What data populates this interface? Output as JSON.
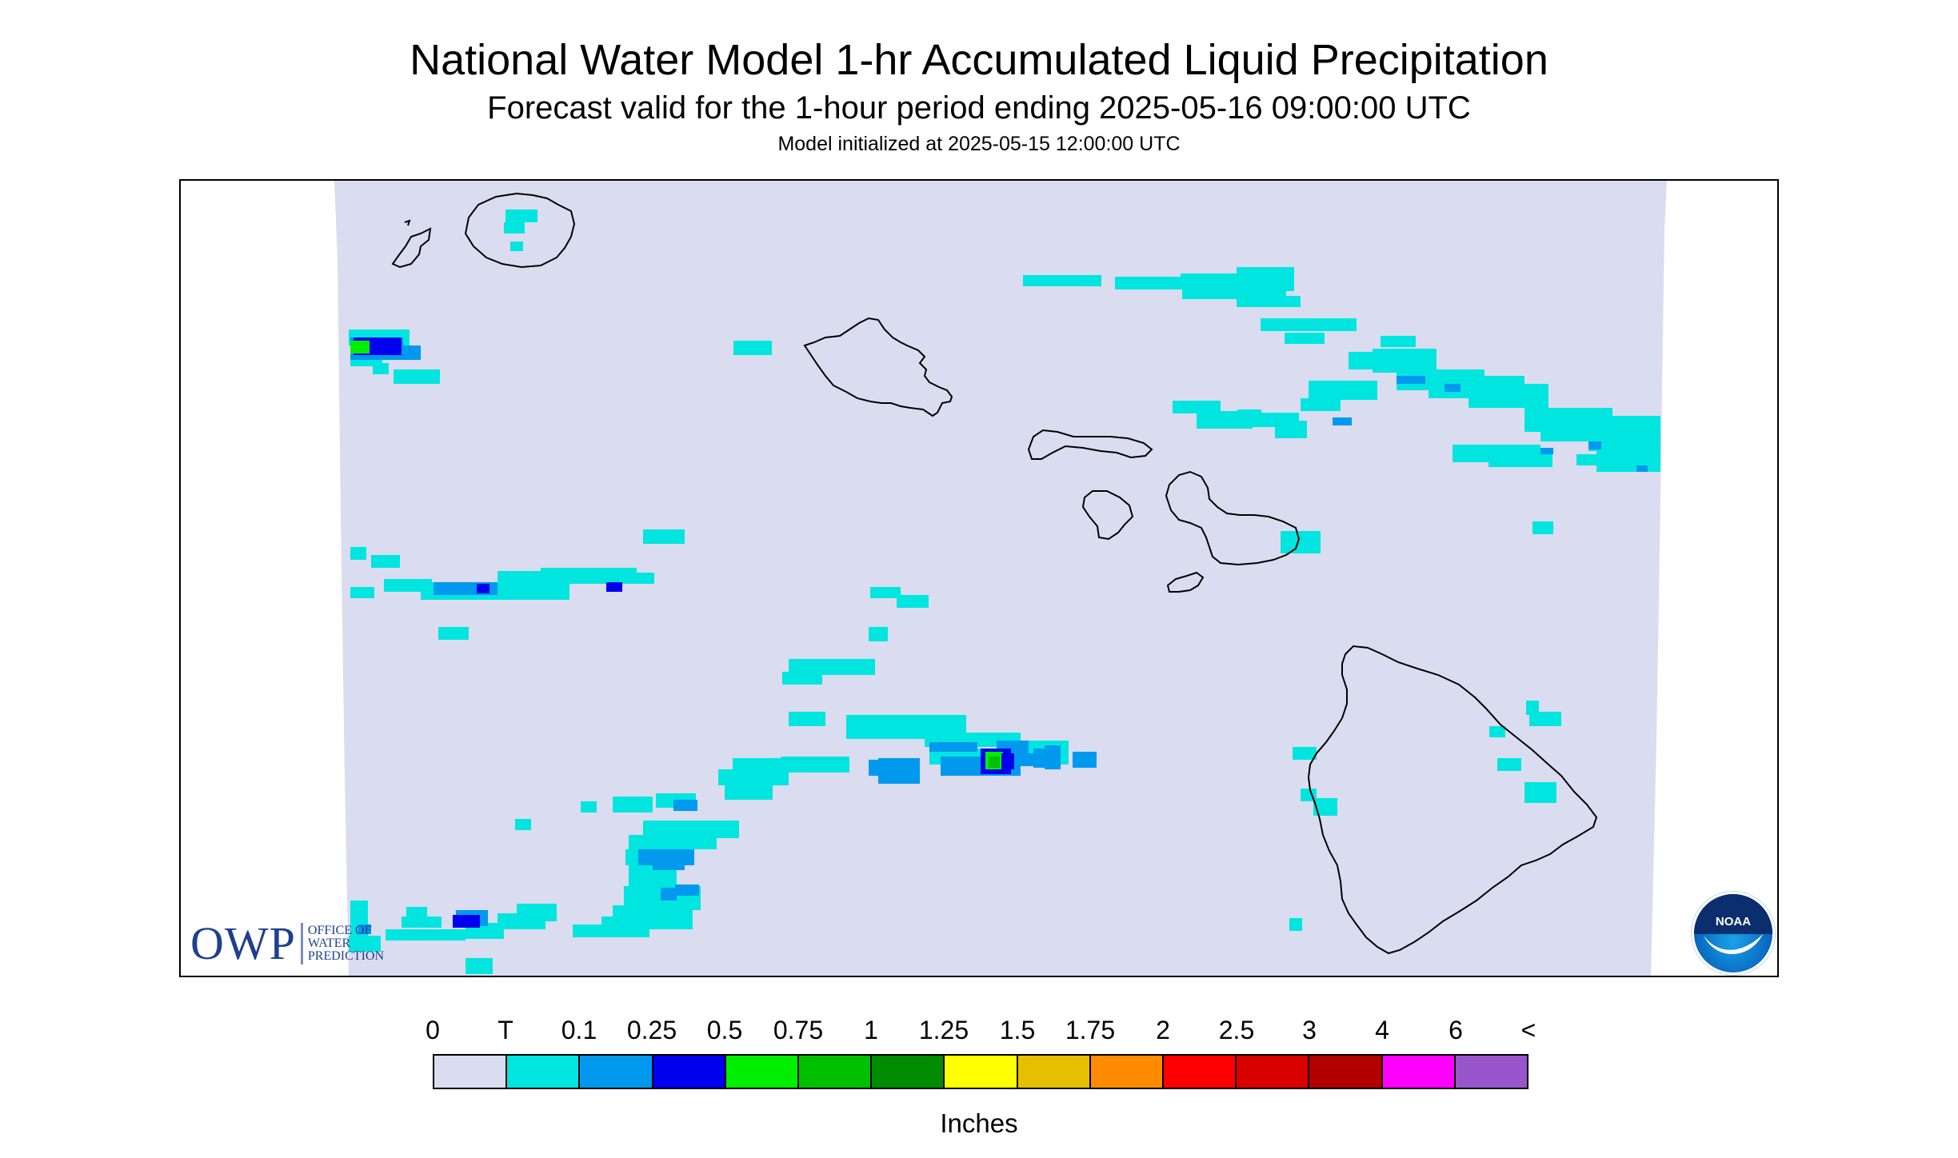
{
  "title": "National Water Model 1-hr Accumulated Liquid Precipitation",
  "subtitle": "Forecast valid for the 1-hour period ending 2025-05-16 09:00:00 UTC",
  "initialized": "Model initialized at 2025-05-15 12:00:00 UTC",
  "legend": {
    "labels": [
      "0",
      "T",
      "0.1",
      "0.25",
      "0.5",
      "0.75",
      "1",
      "1.25",
      "1.5",
      "1.75",
      "2",
      "2.5",
      "3",
      "4",
      "6",
      "<"
    ],
    "colors": [
      "#dadcef",
      "#00e5e0",
      "#0099ee",
      "#0000ee",
      "#00ee00",
      "#00c000",
      "#008c00",
      "#ffff00",
      "#e6bf00",
      "#ff8c00",
      "#ff0000",
      "#d90000",
      "#b30000",
      "#ff00ff",
      "#9955cc"
    ],
    "units": "Inches"
  },
  "colors": {
    "ocean": "#dadcef",
    "trace": "#00e5e0",
    "light": "#0099ee",
    "moderate": "#0000ee",
    "heavy": "#00ee00"
  },
  "logos": {
    "owp_text": "OWP",
    "owp_line1": "OFFICE OF",
    "owp_line2": "WATER",
    "owp_line3": "PREDICTION",
    "noaa_text": "NOAA"
  }
}
